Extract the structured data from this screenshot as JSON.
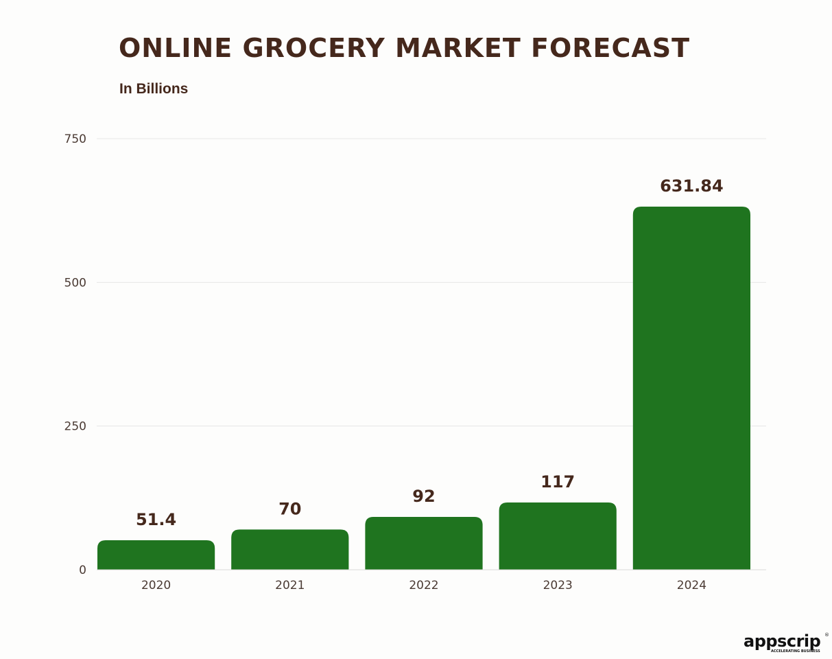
{
  "chart_data": {
    "type": "bar",
    "title": "ONLINE GROCERY MARKET FORECAST",
    "subtitle": "In Billions",
    "categories": [
      "2020",
      "2021",
      "2022",
      "2023",
      "2024"
    ],
    "values": [
      51.4,
      70,
      92,
      117,
      631.84
    ],
    "data_labels": [
      "51.4",
      "70",
      "92",
      "117",
      "631.84"
    ],
    "xlabel": "",
    "ylabel": "",
    "ylim": [
      0,
      750
    ],
    "yticks": [
      0,
      250,
      500,
      750
    ],
    "grid": true,
    "legend": "none",
    "bar_color": "#1f741f"
  },
  "brand": {
    "logo_text": "appscrip",
    "tagline": "ACCELERATING BUSINESS"
  }
}
